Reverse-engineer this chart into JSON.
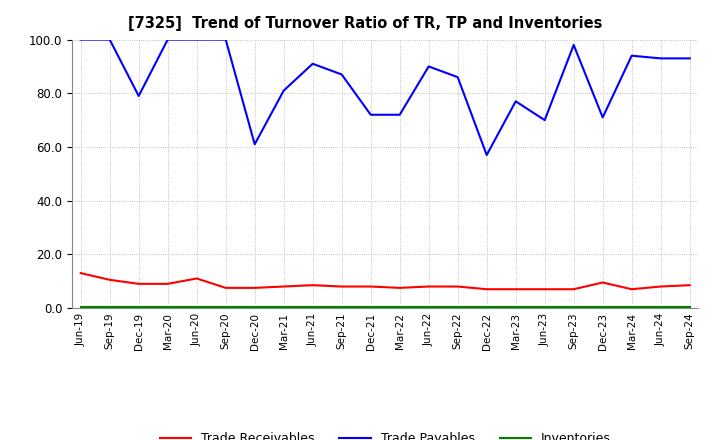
{
  "title": "[7325]  Trend of Turnover Ratio of TR, TP and Inventories",
  "labels": [
    "Jun-19",
    "Sep-19",
    "Dec-19",
    "Mar-20",
    "Jun-20",
    "Sep-20",
    "Dec-20",
    "Mar-21",
    "Jun-21",
    "Sep-21",
    "Dec-21",
    "Mar-22",
    "Jun-22",
    "Sep-22",
    "Dec-22",
    "Mar-23",
    "Jun-23",
    "Sep-23",
    "Dec-23",
    "Mar-24",
    "Jun-24",
    "Sep-24"
  ],
  "trade_payables": [
    100.0,
    100.0,
    79.0,
    100.0,
    100.0,
    100.0,
    61.0,
    81.0,
    91.0,
    87.0,
    72.0,
    72.0,
    90.0,
    86.0,
    57.0,
    77.0,
    70.0,
    98.0,
    71.0,
    94.0,
    93.0,
    93.0
  ],
  "trade_receivables": [
    13.0,
    10.5,
    9.0,
    9.0,
    11.0,
    7.5,
    7.5,
    8.0,
    8.5,
    8.0,
    8.0,
    7.5,
    8.0,
    8.0,
    7.0,
    7.0,
    7.0,
    7.0,
    9.5,
    7.0,
    8.0,
    8.5
  ],
  "inventories": [
    0.3,
    0.3,
    0.3,
    0.3,
    0.3,
    0.3,
    0.3,
    0.3,
    0.3,
    0.3,
    0.3,
    0.3,
    0.3,
    0.3,
    0.3,
    0.3,
    0.3,
    0.3,
    0.3,
    0.3,
    0.3,
    0.3
  ],
  "tr_color": "#ff0000",
  "tp_color": "#0000ff",
  "inv_color": "#008000",
  "ylim": [
    0.0,
    100.0
  ],
  "yticks": [
    0.0,
    20.0,
    40.0,
    60.0,
    80.0,
    100.0
  ],
  "bg_color": "#ffffff",
  "plot_bg_color": "#ffffff",
  "legend_labels": [
    "Trade Receivables",
    "Trade Payables",
    "Inventories"
  ],
  "grid_color": "#b0b0b0",
  "linewidth": 1.5
}
